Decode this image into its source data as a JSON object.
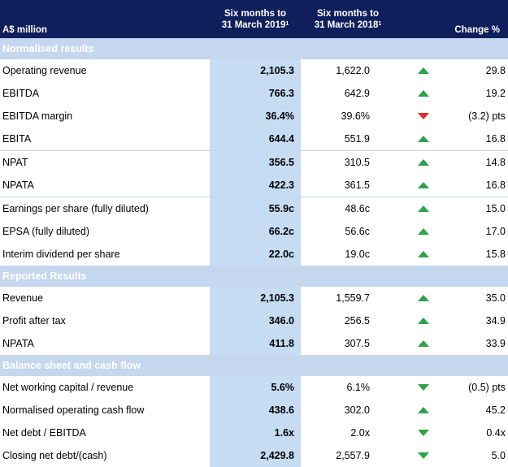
{
  "header": {
    "label": "A$ million",
    "col_current": [
      "Six months to",
      "31 March 2019",
      "1"
    ],
    "col_prior": [
      "Six months to",
      "31 March 2018",
      "1"
    ],
    "col_change": "Change %"
  },
  "colors": {
    "navy": "#0f1f5c",
    "section": "#c5d7ee",
    "highlight": "#c5dcf2",
    "up": "#2ca24a",
    "down_bad": "#e8262b",
    "down_good": "#2ca24a"
  },
  "sections": [
    {
      "title": "Normalised results",
      "rows": [
        {
          "label": "Operating revenue",
          "current": "2,105.3",
          "prior": "1,622.0",
          "arrow": "up-green-icon",
          "change": "29.8"
        },
        {
          "label": "EBITDA",
          "current": "766.3",
          "prior": "642.9",
          "arrow": "up-green-icon",
          "change": "19.2"
        },
        {
          "label": "EBITDA margin",
          "current": "36.4%",
          "prior": "39.6%",
          "arrow": "down-red-icon",
          "change": "(3.2) pts"
        },
        {
          "label": "EBITA",
          "current": "644.4",
          "prior": "551.9",
          "arrow": "up-green-icon",
          "change": "16.8"
        },
        {
          "label": "NPAT",
          "current": "356.5",
          "prior": "310.5",
          "arrow": "up-green-icon",
          "change": "14.8"
        },
        {
          "label": "NPATA",
          "current": "422.3",
          "prior": "361.5",
          "arrow": "up-green-icon",
          "change": "16.8"
        },
        {
          "label": "Earnings per share (fully diluted)",
          "current": "55.9c",
          "prior": "48.6c",
          "arrow": "up-green-icon",
          "change": "15.0"
        },
        {
          "label": "EPSA (fully diluted)",
          "current": "66.2c",
          "prior": "56.6c",
          "arrow": "up-green-icon",
          "change": "17.0"
        },
        {
          "label": "Interim dividend per share",
          "current": "22.0c",
          "prior": "19.0c",
          "arrow": "up-green-icon",
          "change": "15.8"
        }
      ]
    },
    {
      "title": "Reported Results",
      "rows": [
        {
          "label": "Revenue",
          "current": "2,105.3",
          "prior": "1,559.7",
          "arrow": "up-green-icon",
          "change": "35.0"
        },
        {
          "label": "Profit after tax",
          "current": "346.0",
          "prior": "256.5",
          "arrow": "up-green-icon",
          "change": "34.9"
        },
        {
          "label": "NPATA",
          "current": "411.8",
          "prior": "307.5",
          "arrow": "up-green-icon",
          "change": "33.9"
        }
      ]
    },
    {
      "title": "Balance sheet and cash flow",
      "rows": [
        {
          "label": "Net working capital / revenue",
          "current": "5.6%",
          "prior": "6.1%",
          "arrow": "down-green-icon",
          "change": "(0.5) pts"
        },
        {
          "label": "Normalised operating cash flow",
          "current": "438.6",
          "prior": "302.0",
          "arrow": "up-green-icon",
          "change": "45.2"
        },
        {
          "label": "Net debt / EBITDA",
          "current": "1.6x",
          "prior": "2.0x",
          "arrow": "down-green-icon",
          "change": "0.4x"
        },
        {
          "label": "Closing net debt/(cash)",
          "current": "2,429.8",
          "prior": "2,557.9",
          "arrow": "down-green-icon",
          "change": "5.0"
        }
      ]
    }
  ]
}
